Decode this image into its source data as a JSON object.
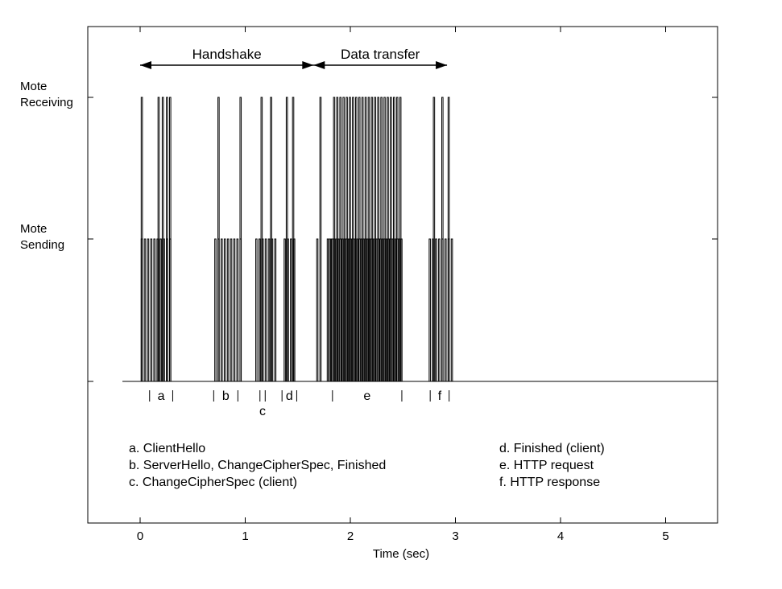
{
  "chart_data": {
    "type": "line",
    "xlabel": "Time (sec)",
    "ylabel": "",
    "xlim": [
      -0.5,
      5.5
    ],
    "x_ticks": [
      0,
      1,
      2,
      3,
      4,
      5
    ],
    "x_tick_labels": [
      "0",
      "1",
      "2",
      "3",
      "4",
      "5"
    ],
    "y_states": [
      {
        "level": 1,
        "label_lines": [
          "Mote",
          "Sending"
        ]
      },
      {
        "level": 2,
        "label_lines": [
          "Mote",
          "Receiving"
        ]
      }
    ],
    "phases": [
      {
        "label": "Handshake",
        "x_start": 0.0,
        "x_end": 1.65
      },
      {
        "label": "Data transfer",
        "x_start": 1.65,
        "x_end": 2.92
      }
    ],
    "segment_markers": [
      {
        "label": "a",
        "x_start": 0.09,
        "x_end": 0.31
      },
      {
        "label": "b",
        "x_start": 0.7,
        "x_end": 0.93
      },
      {
        "label": "c",
        "x_start": 1.14,
        "x_end": 1.19,
        "label_below": true
      },
      {
        "label": "d",
        "x_start": 1.35,
        "x_end": 1.49
      },
      {
        "label": "e",
        "x_start": 1.83,
        "x_end": 2.49
      },
      {
        "label": "f",
        "x_start": 2.76,
        "x_end": 2.94
      }
    ],
    "legend_left": [
      "a. ClientHello",
      "b. ServerHello, ChangeCipherSpec, Finished",
      "c. ChangeCipherSpec (client)"
    ],
    "legend_right": [
      "d. Finished (client)",
      "e. HTTP request",
      "f. HTTP response"
    ],
    "series": [
      {
        "bursts": [
          {
            "start": 0.0,
            "end": 0.3,
            "sends": [
              0.01,
              0.04,
              0.07,
              0.1,
              0.13,
              0.16,
              0.19,
              0.22,
              0.25,
              0.28
            ],
            "receives": [
              0.01,
              0.17,
              0.21,
              0.25,
              0.28
            ]
          },
          {
            "start": 0.71,
            "end": 0.95,
            "sends": [
              0.71,
              0.74,
              0.77,
              0.8,
              0.83,
              0.86,
              0.89,
              0.92,
              0.95
            ],
            "receives": [
              0.74,
              0.95
            ]
          },
          {
            "start": 1.1,
            "end": 1.3,
            "sends": [
              1.1,
              1.13,
              1.16,
              1.19,
              1.22,
              1.25,
              1.28
            ],
            "receives": [
              1.15,
              1.24
            ]
          },
          {
            "start": 1.37,
            "end": 1.46,
            "sends": [
              1.37,
              1.4,
              1.43,
              1.46
            ],
            "receives": [
              1.39,
              1.45
            ]
          },
          {
            "start": 1.68,
            "end": 1.7,
            "sends": [
              1.68
            ],
            "receives": [
              1.71
            ]
          },
          {
            "start": 1.78,
            "end": 2.5,
            "sends": [
              1.78,
              1.8,
              1.82,
              1.84,
              1.86,
              1.88,
              1.9,
              1.92,
              1.94,
              1.96,
              1.98,
              2.0,
              2.02,
              2.04,
              2.06,
              2.08,
              2.1,
              2.12,
              2.14,
              2.16,
              2.18,
              2.2,
              2.22,
              2.24,
              2.26,
              2.28,
              2.3,
              2.32,
              2.34,
              2.36,
              2.38,
              2.4,
              2.42,
              2.44,
              2.46,
              2.48
            ],
            "receives": [
              1.84,
              1.87,
              1.9,
              1.93,
              1.96,
              1.99,
              2.02,
              2.05,
              2.08,
              2.11,
              2.14,
              2.17,
              2.2,
              2.23,
              2.26,
              2.29,
              2.32,
              2.35,
              2.38,
              2.41,
              2.44,
              2.47
            ]
          },
          {
            "start": 2.75,
            "end": 2.98,
            "sends": [
              2.75,
              2.78,
              2.81,
              2.84,
              2.87,
              2.9,
              2.93,
              2.96
            ],
            "receives": [
              2.79,
              2.87,
              2.93
            ]
          }
        ]
      }
    ],
    "grid": false
  }
}
